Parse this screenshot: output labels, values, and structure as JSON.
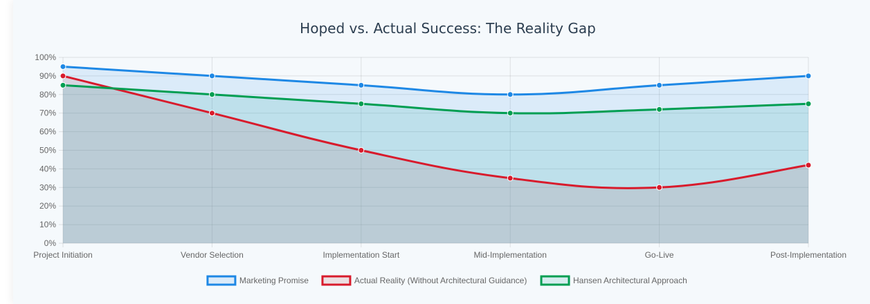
{
  "chart_data": {
    "type": "area",
    "title": "Hoped vs. Actual Success: The Reality Gap",
    "categories": [
      "Project Initiation",
      "Vendor Selection",
      "Implementation Start",
      "Mid-Implementation",
      "Go-Live",
      "Post-Implementation"
    ],
    "ylim": [
      0,
      100
    ],
    "y_ticks": [
      0,
      10,
      20,
      30,
      40,
      50,
      60,
      70,
      80,
      90,
      100
    ],
    "y_tick_labels": [
      "0%",
      "10%",
      "20%",
      "30%",
      "40%",
      "50%",
      "60%",
      "70%",
      "80%",
      "90%",
      "100%"
    ],
    "grid": true,
    "legend_position": "bottom",
    "series": [
      {
        "name": "Marketing Promise",
        "values": [
          95,
          90,
          85,
          80,
          85,
          90
        ],
        "color": "#1e88e5",
        "fill": "rgba(30,136,229,0.12)"
      },
      {
        "name": "Actual Reality (Without Architectural Guidance)",
        "values": [
          90,
          70,
          50,
          35,
          30,
          42
        ],
        "color": "#d81b2c",
        "fill": "rgba(201,130,135,0.22)"
      },
      {
        "name": "Hansen Architectural Approach",
        "values": [
          85,
          80,
          75,
          70,
          72,
          75
        ],
        "color": "#009e52",
        "fill": "rgba(0,158,150,0.13)"
      }
    ]
  }
}
